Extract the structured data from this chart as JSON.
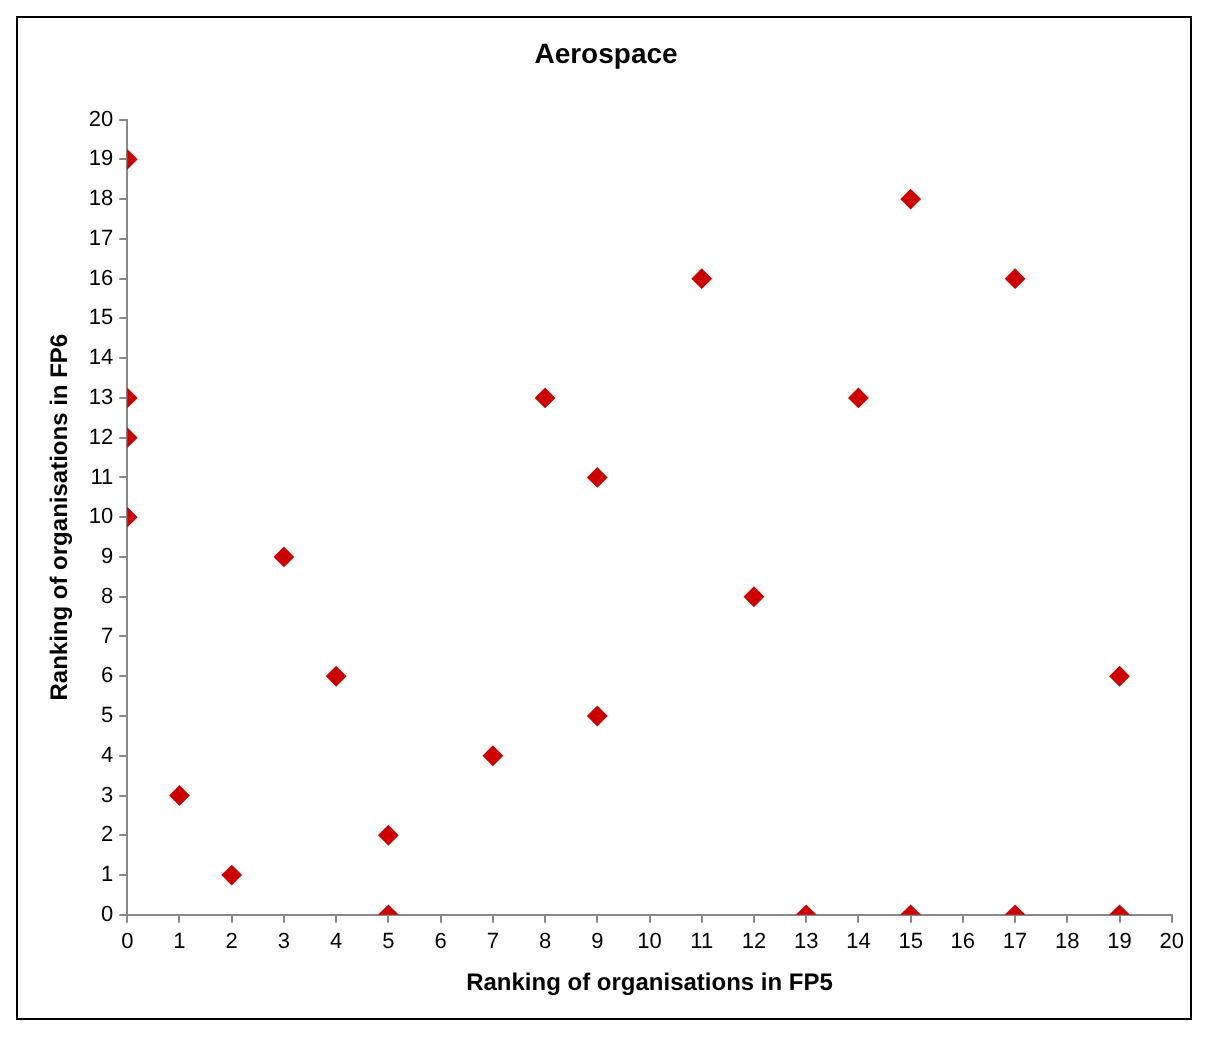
{
  "chart_data": {
    "type": "scatter",
    "title": "Aerospace",
    "xlabel": "Ranking of organisations in FP5",
    "ylabel": "Ranking of organisations in FP6",
    "x": [
      0,
      0,
      0,
      0,
      1,
      2,
      3,
      4,
      5,
      5,
      7,
      8,
      9,
      9,
      11,
      12,
      13,
      14,
      15,
      15,
      17,
      17,
      19,
      19
    ],
    "series": [
      {
        "color": "#cc0000",
        "values": [
          19,
          13,
          12,
          10,
          3,
          1,
          9,
          6,
          2,
          0,
          4,
          13,
          11,
          5,
          16,
          8,
          0,
          13,
          18,
          0,
          16,
          0,
          6,
          0
        ]
      }
    ],
    "xlim": [
      0,
      20
    ],
    "xticks": [
      0,
      1,
      2,
      3,
      4,
      5,
      6,
      7,
      8,
      9,
      10,
      11,
      12,
      13,
      14,
      15,
      16,
      17,
      18,
      19,
      20
    ],
    "ylim": [
      0,
      20
    ],
    "yticks": [
      0,
      1,
      2,
      3,
      4,
      5,
      6,
      7,
      8,
      9,
      10,
      11,
      12,
      13,
      14,
      15,
      16,
      17,
      18,
      19,
      20
    ],
    "grid": false,
    "legend": false,
    "marker": "diamond"
  }
}
